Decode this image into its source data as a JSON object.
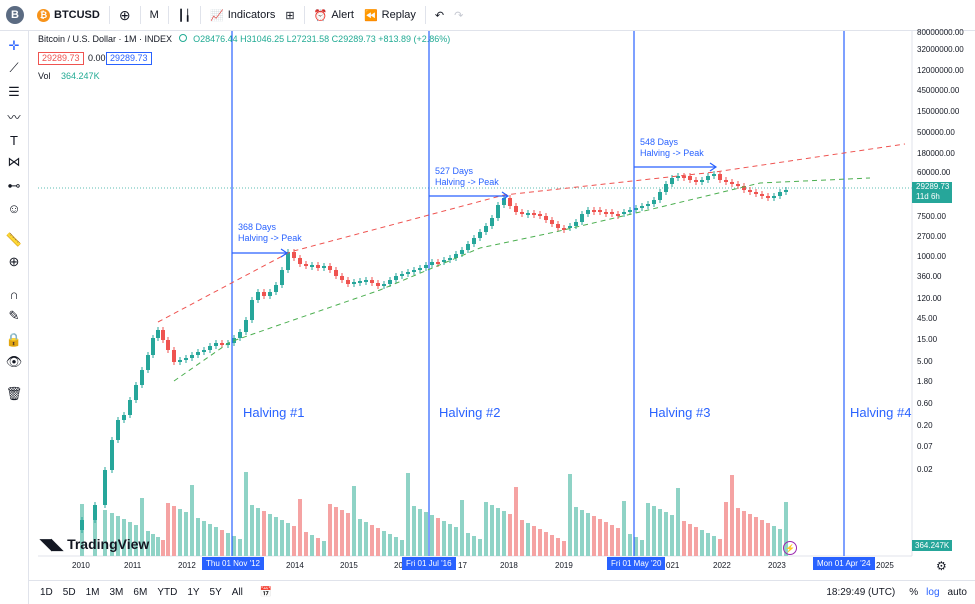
{
  "toolbar": {
    "avatar_letter": "B",
    "symbol": "BTCUSD",
    "interval": "M",
    "indicators_label": "Indicators",
    "alert_label": "Alert",
    "replay_label": "Replay"
  },
  "legend": {
    "title": "Bitcoin / U.S. Dollar · 1M · INDEX",
    "ohlc": "O28476.44 H31046.25 L27231.58 C29289.73 +813.89 (+2.86%)",
    "bid": "29289.73",
    "spread": "0.00",
    "ask": "29289.73",
    "vol_label": "Vol",
    "vol_value": "364.247K"
  },
  "price_axis": {
    "labels": [
      "80000000.00",
      "32000000.00",
      "12000000.00",
      "4500000.00",
      "1500000.00",
      "500000.00",
      "180000.00",
      "60000.00",
      "7500.00",
      "2700.00",
      "1000.00",
      "360.00",
      "120.00",
      "45.00",
      "15.00",
      "5.00",
      "1.80",
      "0.60",
      "0.20",
      "0.07",
      "0.02"
    ],
    "current_price": "29289.73",
    "countdown": "11d 6h",
    "volume_tag": "364.247K"
  },
  "time_axis": {
    "years": [
      "2010",
      "2011",
      "2012",
      "2014",
      "2015",
      "20",
      "17",
      "2018",
      "2019",
      "021",
      "2022",
      "2023",
      "2025"
    ],
    "flags": [
      "Thu 01 Nov '12",
      "Fri 01 Jul '16",
      "Fri 01 May '20",
      "Mon 01 Apr '24"
    ]
  },
  "halvings": [
    "Halving #1",
    "Halving #2",
    "Halving #3",
    "Halving #4"
  ],
  "annotations": [
    {
      "days": "368 Days",
      "text": "Halving -> Peak"
    },
    {
      "days": "527 Days",
      "text": "Halving -> Peak"
    },
    {
      "days": "548 Days",
      "text": "Halving -> Peak"
    }
  ],
  "watermark": "TradingView",
  "bottom": {
    "timeframes": [
      "1D",
      "5D",
      "1M",
      "3M",
      "6M",
      "YTD",
      "1Y",
      "5Y",
      "All"
    ],
    "clock": "18:29:49 (UTC)",
    "pct": "%",
    "log": "log",
    "auto": "auto"
  },
  "colors": {
    "up": "#26a69a",
    "down": "#ef5350",
    "accent": "#2962ff",
    "vol_up": "#8fd3c6",
    "vol_down": "#f5a3a3"
  }
}
